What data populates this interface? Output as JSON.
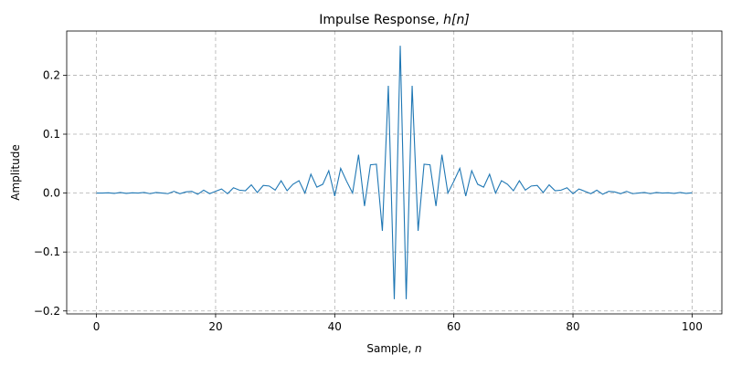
{
  "chart_data": {
    "type": "line",
    "title_prefix": "Impulse Response, ",
    "title_var": "h[n]",
    "xlabel_prefix": "Sample, ",
    "xlabel_var": "n",
    "ylabel": "Amplitude",
    "xlim": [
      -5,
      105
    ],
    "ylim": [
      -0.205,
      0.275
    ],
    "x_ticks": [
      0,
      20,
      40,
      60,
      80,
      100
    ],
    "x_tick_labels": [
      "0",
      "20",
      "40",
      "60",
      "80",
      "100"
    ],
    "y_ticks": [
      -0.2,
      -0.1,
      0.0,
      0.1,
      0.2
    ],
    "y_tick_labels": [
      "−0.2",
      "−0.1",
      "0.0",
      "0.1",
      "0.2"
    ],
    "grid": true,
    "line_color": "#1f77b4",
    "series": [
      {
        "x": [
          0,
          1,
          2,
          3,
          4,
          5,
          6,
          7,
          8,
          9,
          10,
          11,
          12,
          13,
          14,
          15,
          16,
          17,
          18,
          19,
          20,
          21,
          22,
          23,
          24,
          25,
          26,
          27,
          28,
          29,
          30,
          31,
          32,
          33,
          34,
          35,
          36,
          37,
          38,
          39,
          40,
          41,
          42,
          43,
          44,
          45,
          46,
          47,
          48,
          49,
          50,
          51,
          52,
          53,
          54,
          55,
          56,
          57,
          58,
          59,
          60,
          61,
          62,
          63,
          64,
          65,
          66,
          67,
          68,
          69,
          70,
          71,
          72,
          73,
          74,
          75,
          76,
          77,
          78,
          79,
          80,
          81,
          82,
          83,
          84,
          85,
          86,
          87,
          88,
          89,
          90,
          91,
          92,
          93,
          94,
          95,
          96,
          97,
          98,
          99,
          100
        ],
        "values": [
          0.0,
          0.0,
          0.0005,
          -0.0005,
          0.001,
          -0.0005,
          0.0005,
          0.0,
          0.001,
          -0.001,
          0.001,
          0.0,
          -0.001,
          0.003,
          -0.001,
          0.002,
          0.003,
          -0.002,
          0.005,
          -0.001,
          0.003,
          0.007,
          -0.001,
          0.009,
          0.005,
          0.004,
          0.014,
          0.001,
          0.013,
          0.012,
          0.005,
          0.021,
          0.004,
          0.015,
          0.021,
          0.0,
          0.032,
          0.01,
          0.015,
          0.038,
          -0.005,
          0.042,
          0.02,
          0.0,
          0.065,
          -0.022,
          0.048,
          0.049,
          -0.064,
          0.182,
          -0.18,
          0.25,
          -0.18,
          0.182,
          -0.064,
          0.049,
          0.048,
          -0.022,
          0.065,
          0.0,
          0.02,
          0.042,
          -0.005,
          0.038,
          0.015,
          0.01,
          0.032,
          0.0,
          0.021,
          0.015,
          0.004,
          0.021,
          0.005,
          0.012,
          0.013,
          0.001,
          0.014,
          0.004,
          0.005,
          0.009,
          -0.001,
          0.007,
          0.003,
          -0.001,
          0.005,
          -0.002,
          0.003,
          0.002,
          -0.001,
          0.003,
          -0.001,
          0.0,
          0.001,
          -0.001,
          0.001,
          0.0,
          0.0005,
          -0.0005,
          0.001,
          -0.0005,
          0.0005
        ]
      }
    ]
  }
}
